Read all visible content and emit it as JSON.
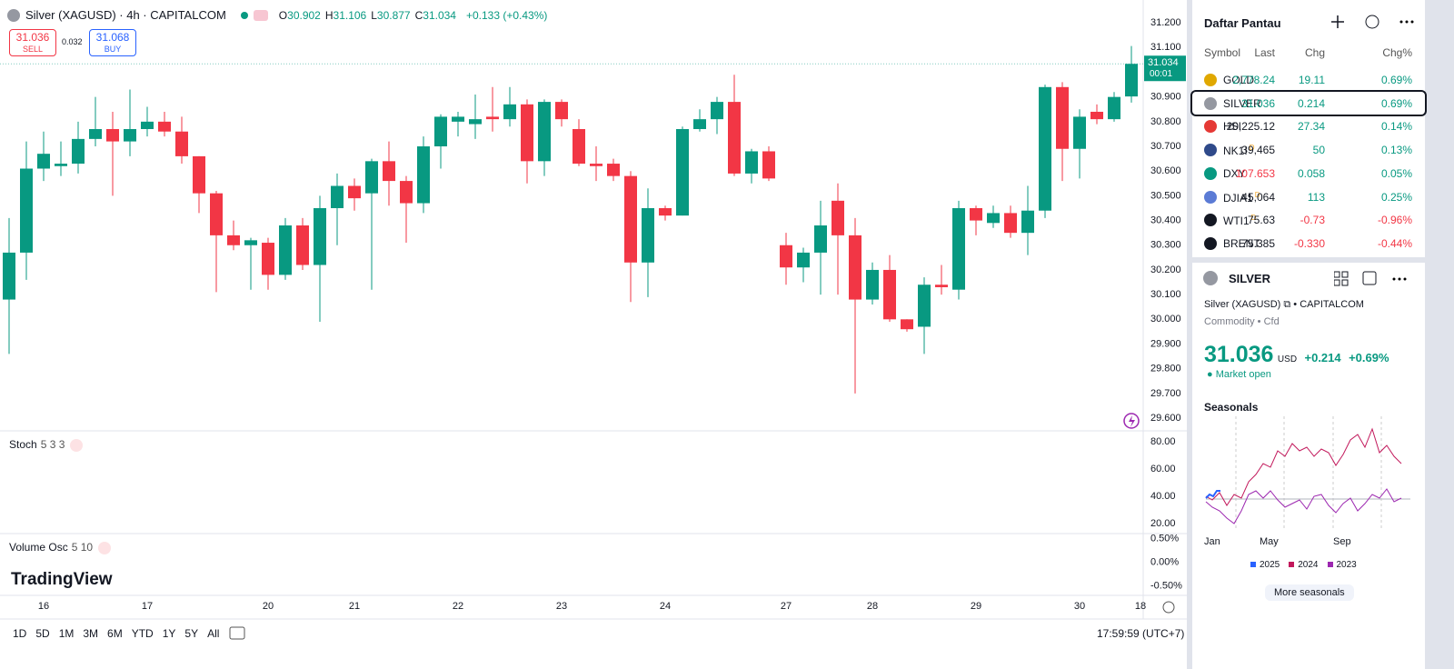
{
  "header": {
    "symbol": "Silver (XAGUSD) · 4h · CAPITALCOM",
    "legend_keys": [
      "O",
      "H",
      "L",
      "C"
    ],
    "change": "+0.133 (+0.43%)"
  },
  "trade": {
    "sell_price": "31.036",
    "sell_label": "SELL",
    "spread": "0.032",
    "buy_price": "31.068",
    "buy_label": "BUY"
  },
  "price_tag": {
    "countdown": "00:01"
  },
  "chart_data": {
    "type": "candlestick",
    "categories": [
      null,
      null,
      "16",
      null,
      null,
      null,
      null,
      null,
      "17",
      null,
      null,
      null,
      null,
      null,
      null,
      "20",
      null,
      null,
      null,
      null,
      "21",
      null,
      null,
      null,
      null,
      null,
      "22",
      null,
      null,
      null,
      null,
      null,
      "23",
      null,
      null,
      null,
      null,
      null,
      "24",
      null,
      null,
      null,
      null,
      null,
      null,
      "27",
      null,
      null,
      null,
      null,
      "28",
      null,
      null,
      null,
      null,
      null,
      "29",
      null,
      null,
      null,
      null,
      null,
      "30",
      null,
      null,
      null
    ],
    "open": [
      30.08,
      30.27,
      30.61,
      30.62,
      30.63,
      30.73,
      30.77,
      30.72,
      30.77,
      30.8,
      30.76,
      30.66,
      30.51,
      30.34,
      30.3,
      30.31,
      30.18,
      30.38,
      30.22,
      30.45,
      30.54,
      30.51,
      30.64,
      30.56,
      30.47,
      30.7,
      30.8,
      30.79,
      30.82,
      30.81,
      30.87,
      30.64,
      30.88,
      30.77,
      30.63,
      30.63,
      30.58,
      30.23,
      30.45,
      30.42,
      30.77,
      30.81,
      30.88,
      30.59,
      30.68,
      30.3,
      30.21,
      30.27,
      30.48,
      30.34,
      30.08,
      30.2,
      30.0,
      29.97,
      30.14,
      30.12,
      30.45,
      30.39,
      30.43,
      30.35,
      30.44,
      30.94,
      30.69,
      30.84,
      30.81,
      30.902
    ],
    "high": [
      30.41,
      30.72,
      30.76,
      30.72,
      30.8,
      30.9,
      30.84,
      30.93,
      30.86,
      30.84,
      30.82,
      30.66,
      30.52,
      30.4,
      30.33,
      30.33,
      30.41,
      30.41,
      30.5,
      30.59,
      30.57,
      30.65,
      30.72,
      30.58,
      30.74,
      30.83,
      30.84,
      30.91,
      30.94,
      30.94,
      30.89,
      30.89,
      30.89,
      30.81,
      30.7,
      30.65,
      30.6,
      30.53,
      30.46,
      30.78,
      30.85,
      30.9,
      30.99,
      30.69,
      30.7,
      30.35,
      30.29,
      30.48,
      30.55,
      30.41,
      30.23,
      30.26,
      30.0,
      30.17,
      30.22,
      30.48,
      30.46,
      30.46,
      30.46,
      30.54,
      30.95,
      30.96,
      30.85,
      30.87,
      30.92,
      31.106
    ],
    "low": [
      29.86,
      30.16,
      30.56,
      30.58,
      30.59,
      30.7,
      30.5,
      30.66,
      30.74,
      30.74,
      30.63,
      30.43,
      30.11,
      30.28,
      30.12,
      30.12,
      30.16,
      30.2,
      29.99,
      30.3,
      30.44,
      30.12,
      30.46,
      30.31,
      30.43,
      30.61,
      30.74,
      30.73,
      30.76,
      30.78,
      30.55,
      30.58,
      30.78,
      30.62,
      30.56,
      30.56,
      30.07,
      30.09,
      30.4,
      30.42,
      30.76,
      30.75,
      30.58,
      30.55,
      30.56,
      30.14,
      30.15,
      30.1,
      30.1,
      29.7,
      30.06,
      29.99,
      29.95,
      29.86,
      30.1,
      30.08,
      30.34,
      30.37,
      30.33,
      30.26,
      30.41,
      30.56,
      30.57,
      30.79,
      30.8,
      30.877
    ],
    "close": [
      30.27,
      30.61,
      30.67,
      30.63,
      30.73,
      30.77,
      30.72,
      30.77,
      30.8,
      30.76,
      30.66,
      30.51,
      30.34,
      30.3,
      30.32,
      30.18,
      30.38,
      30.22,
      30.45,
      30.54,
      30.49,
      30.64,
      30.56,
      30.47,
      30.7,
      30.82,
      30.82,
      30.81,
      30.81,
      30.87,
      30.64,
      30.88,
      30.81,
      30.63,
      30.62,
      30.58,
      30.23,
      30.45,
      30.42,
      30.77,
      30.81,
      30.88,
      30.59,
      30.68,
      30.57,
      30.21,
      30.27,
      30.38,
      30.34,
      30.08,
      30.2,
      30.0,
      29.96,
      30.14,
      30.13,
      30.45,
      30.4,
      30.43,
      30.35,
      30.44,
      30.94,
      30.69,
      30.82,
      30.81,
      30.9,
      31.034
    ],
    "up_color": "#089981",
    "down_color": "#f23645",
    "ylim": [
      29.556,
      31.274
    ],
    "yticks": [
      {
        "value": 31.2,
        "label": "31.200"
      },
      {
        "value": 31.1,
        "label": "31.100"
      },
      {
        "value": 31.0,
        "label": "31.000"
      },
      {
        "value": 30.9,
        "label": "30.900"
      },
      {
        "value": 30.8,
        "label": "30.800"
      },
      {
        "value": 30.7,
        "label": "30.700"
      },
      {
        "value": 30.6,
        "label": "30.600"
      },
      {
        "value": 30.5,
        "label": "30.500"
      },
      {
        "value": 30.4,
        "label": "30.400"
      },
      {
        "value": 30.3,
        "label": "30.300"
      },
      {
        "value": 30.2,
        "label": "30.200"
      },
      {
        "value": 30.1,
        "label": "30.100"
      },
      {
        "value": 30.0,
        "label": "30.000"
      },
      {
        "value": 29.9,
        "label": "29.900"
      },
      {
        "value": 29.8,
        "label": "29.800"
      },
      {
        "value": 29.7,
        "label": "29.700"
      },
      {
        "value": 29.6,
        "label": "29.600"
      }
    ],
    "x_end_label": "18"
  },
  "panes": [
    {
      "name": "Stoch",
      "params": "5 3 3",
      "ylim": [
        12.6,
        88.1
      ],
      "yticks": [
        {
          "value": 80,
          "label": "80.00"
        },
        {
          "value": 60,
          "label": "60.00"
        },
        {
          "value": 40,
          "label": "40.00"
        },
        {
          "value": 20,
          "label": "20.00"
        }
      ]
    },
    {
      "name": "Volume Osc",
      "params": "5 10",
      "ylim": [
        -0.696,
        0.607
      ],
      "yticks": [
        {
          "value": 0.5,
          "label": "0.50%"
        },
        {
          "value": 0,
          "label": "0.00%"
        },
        {
          "value": -0.5,
          "label": "-0.50%"
        }
      ]
    }
  ],
  "logo": "TradingView",
  "toolbar": {
    "ranges": [
      "1D",
      "5D",
      "1M",
      "3M",
      "6M",
      "YTD",
      "1Y",
      "5Y",
      "All"
    ],
    "clock": "17:59:59 (UTC+7)"
  },
  "watchlist": {
    "title": "Daftar Pantau",
    "columns": [
      "Symbol",
      "Last",
      "Chg",
      "Chg%"
    ],
    "rows": [
      {
        "symbol": "GOLD",
        "last": "2,778.24",
        "chg": "19.11",
        "chg_pct": "0.69%",
        "last_tone": "up",
        "chg_tone": "up",
        "icon_color": "#e0a800"
      },
      {
        "symbol": "SILVER",
        "last": "31.036",
        "chg": "0.214",
        "chg_pct": "0.69%",
        "last_tone": "up",
        "chg_tone": "up",
        "icon_color": "#9598a1",
        "selected": true
      },
      {
        "symbol": "HSI",
        "last": "20,225.12",
        "chg": "27.34",
        "chg_pct": "0.14%",
        "last_tone": "flat",
        "chg_tone": "up",
        "icon_color": "#e53935"
      },
      {
        "symbol": "NK1!",
        "flag": "D",
        "last": "39,465",
        "chg": "50",
        "chg_pct": "0.13%",
        "last_tone": "flat",
        "chg_tone": "up",
        "icon_color": "#2f4a8a"
      },
      {
        "symbol": "DXY",
        "last": "107.653",
        "chg": "0.058",
        "chg_pct": "0.05%",
        "last_tone": "down",
        "chg_tone": "up",
        "icon_color": "#089981"
      },
      {
        "symbol": "DJIA1",
        "flag": "D",
        "last": "45,064",
        "chg": "113",
        "chg_pct": "0.25%",
        "last_tone": "flat",
        "chg_tone": "up",
        "icon_color": "#5b7bd5"
      },
      {
        "symbol": "WTI1",
        "flag": "D",
        "last": "75.63",
        "chg": "-0.73",
        "chg_pct": "-0.96%",
        "last_tone": "flat",
        "chg_tone": "down",
        "icon_color": "#131722"
      },
      {
        "symbol": "BRENT",
        "last": "75.385",
        "chg": "-0.330",
        "chg_pct": "-0.44%",
        "last_tone": "flat",
        "chg_tone": "down",
        "icon_color": "#131722"
      }
    ]
  },
  "details": {
    "symbol": "SILVER",
    "name": "Silver (XAGUSD)",
    "exchange": "CAPITALCOM",
    "category": "Commodity",
    "kind": "Cfd",
    "price": "31.036",
    "currency": "USD",
    "change": "+0.214",
    "change_pct": "+0.69%",
    "status": "Market open",
    "seasonals_title": "Seasonals",
    "months": [
      "Jan",
      "May",
      "Sep"
    ],
    "legend": [
      {
        "name": "2025",
        "color": "#2962ff"
      },
      {
        "name": "2024",
        "color": "#c2185b"
      },
      {
        "name": "2023",
        "color": "#9c27b0"
      }
    ],
    "more": "More seasonals"
  }
}
